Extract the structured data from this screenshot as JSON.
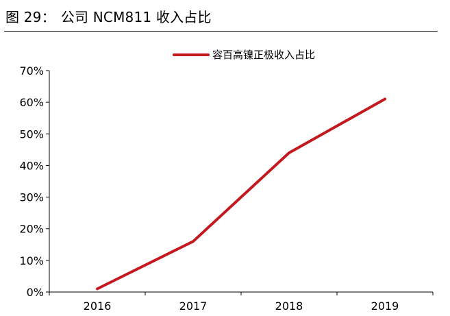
{
  "header": {
    "figure_label": "图 29：",
    "title": "公司 NCM811 收入占比"
  },
  "colors": {
    "series": "#c21a1f",
    "axis": "#000000"
  },
  "chart_data": {
    "type": "line",
    "title": "公司 NCM811 收入占比",
    "xlabel": "",
    "ylabel": "",
    "categories": [
      "2016",
      "2017",
      "2018",
      "2019"
    ],
    "series": [
      {
        "name": "容百高镍正极收入占比",
        "values": [
          1,
          16,
          44,
          61
        ]
      }
    ],
    "y_ticks": [
      "0%",
      "10%",
      "20%",
      "30%",
      "40%",
      "50%",
      "60%",
      "70%"
    ],
    "ylim": [
      0,
      70
    ],
    "grid": false,
    "legend_position": "top-right"
  }
}
